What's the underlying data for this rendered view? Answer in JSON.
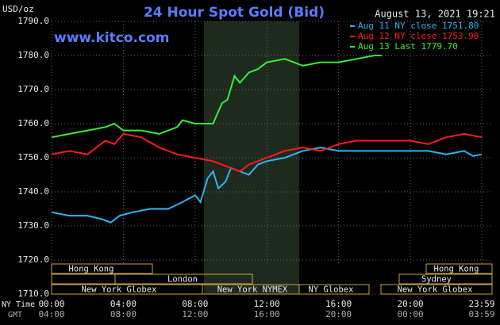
{
  "chart_data": {
    "type": "line",
    "title": "24 Hour Spot Gold (Bid)",
    "y_label": "USD/oz",
    "timestamp": "August 13, 2021 19:21",
    "site": "www.kitco.com",
    "x_label": "NY Time",
    "x2_label": "GMT",
    "ylim": [
      1710,
      1790
    ],
    "yticks": [
      {
        "value": 1710,
        "label": "1710.0"
      },
      {
        "value": 1720,
        "label": "1720.0"
      },
      {
        "value": 1730,
        "label": "1730.0"
      },
      {
        "value": 1740,
        "label": "1740.0"
      },
      {
        "value": 1750,
        "label": "1750.0"
      },
      {
        "value": 1760,
        "label": "1760.0"
      },
      {
        "value": 1770,
        "label": "1770.0"
      },
      {
        "value": 1780,
        "label": "1780.0"
      },
      {
        "value": 1790,
        "label": "1790.0"
      }
    ],
    "xlim": [
      0,
      23.98
    ],
    "xticks": [
      {
        "value": 0,
        "label": "00:00"
      },
      {
        "value": 4,
        "label": "04:00"
      },
      {
        "value": 8,
        "label": "08:00"
      },
      {
        "value": 12,
        "label": "12:00"
      },
      {
        "value": 16,
        "label": "16:00"
      },
      {
        "value": 20,
        "label": "20:00"
      },
      {
        "value": 23.98,
        "label": "23:59"
      }
    ],
    "x2ticks": [
      {
        "value": 0,
        "label": "04:00"
      },
      {
        "value": 4,
        "label": "08:00"
      },
      {
        "value": 8,
        "label": "12:00"
      },
      {
        "value": 12,
        "label": "16:00"
      },
      {
        "value": 16,
        "label": "20:00"
      },
      {
        "value": 20,
        "label": "00:00"
      },
      {
        "value": 23.98,
        "label": "03:59"
      }
    ],
    "grid": true,
    "sessions": [
      "Hong Kong",
      "London",
      "New York Globex",
      "New York NYMEX",
      "NY Globex",
      "Hong Kong",
      "Sydney",
      "New York Globex"
    ],
    "series": [
      {
        "name": "Aug 11 NY close 1751.80",
        "color": "#29b6f6",
        "x": [
          0,
          1,
          2,
          2.8,
          3.3,
          3.8,
          4.5,
          5.5,
          6.5,
          7.3,
          8,
          8.3,
          8.7,
          9,
          9.3,
          9.7,
          10,
          10.5,
          11,
          11.5,
          12,
          13,
          14,
          15,
          16,
          17,
          18,
          19,
          20,
          21,
          22,
          23,
          23.5,
          23.98
        ],
        "values": [
          1734,
          1733,
          1733,
          1732,
          1731,
          1733,
          1734,
          1735,
          1735,
          1737,
          1739,
          1737,
          1744,
          1746,
          1741,
          1743,
          1747,
          1746,
          1745,
          1748,
          1749,
          1750,
          1752,
          1753,
          1752,
          1752,
          1752,
          1752,
          1752,
          1752,
          1751,
          1752,
          1750.5,
          1751
        ]
      },
      {
        "name": "Aug 12 NY close 1753.90",
        "color": "#ff1a1a",
        "x": [
          0,
          1,
          2,
          3,
          3.5,
          4,
          5,
          6,
          7,
          8,
          9,
          10,
          10.5,
          11,
          12,
          13,
          14,
          15,
          16,
          17,
          18,
          19,
          20,
          21,
          22,
          23,
          23.98
        ],
        "values": [
          1751,
          1752,
          1751,
          1755,
          1754,
          1757,
          1756,
          1753,
          1751,
          1750,
          1749,
          1747,
          1746,
          1748,
          1750,
          1752,
          1753,
          1752,
          1754,
          1755,
          1755,
          1755,
          1755,
          1754,
          1756,
          1757,
          1756
        ]
      },
      {
        "name": "Aug 13 Last 1779.70",
        "color": "#33ee33",
        "x": [
          0,
          1,
          2,
          3,
          3.5,
          4,
          5,
          6,
          7,
          7.3,
          8,
          8.5,
          9,
          9.5,
          9.8,
          10.2,
          10.5,
          11,
          11.5,
          12,
          13,
          14,
          15,
          16,
          17,
          18,
          18.4
        ],
        "values": [
          1756,
          1757,
          1758,
          1759,
          1760,
          1758,
          1758,
          1757,
          1759,
          1761,
          1760,
          1760,
          1760,
          1766,
          1767,
          1774,
          1772,
          1775,
          1776,
          1778,
          1779,
          1777,
          1778,
          1778,
          1779,
          1780,
          1780
        ]
      }
    ]
  }
}
